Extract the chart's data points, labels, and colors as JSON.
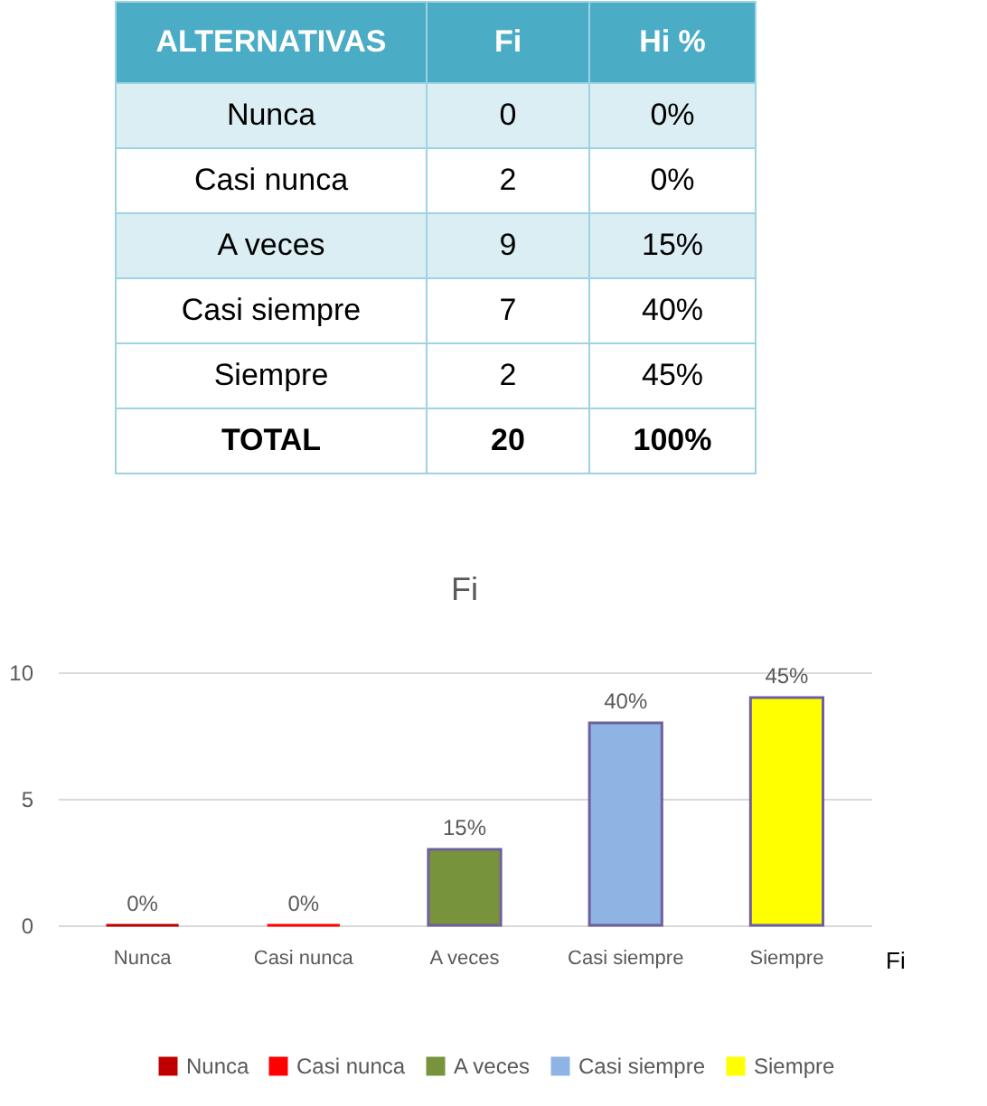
{
  "chart_data": [
    {
      "type": "other",
      "annotations": [
        "ALTERNATIVAS",
        "Fi",
        "Hi %",
        "Nunca",
        "0",
        "0%",
        "Casi nunca",
        "2",
        "0%",
        "A veces",
        "9",
        "15%",
        "Casi siempre",
        "7",
        "40%",
        "Siempre",
        "2",
        "45%",
        "TOTAL",
        "20",
        "100%"
      ]
    },
    {
      "type": "bar",
      "title": "Fi",
      "categories": [
        "Nunca",
        "Casi nunca",
        "A veces",
        "Casi siempre",
        "Siempre"
      ],
      "series": [
        {
          "name": "Nunca",
          "color": "#c00000",
          "values": [
            0,
            null,
            null,
            null,
            null
          ]
        },
        {
          "name": "Casi nunca",
          "color": "#ff0000",
          "values": [
            null,
            0,
            null,
            null,
            null
          ]
        },
        {
          "name": "A veces",
          "color": "#77933c",
          "values": [
            null,
            null,
            3,
            null,
            null
          ]
        },
        {
          "name": "Casi siempre",
          "color": "#8eb4e3",
          "values": [
            null,
            null,
            null,
            8,
            null
          ]
        },
        {
          "name": "Siempre",
          "color": "#ffff00",
          "values": [
            null,
            null,
            null,
            null,
            9
          ]
        }
      ],
      "ylim": [
        0,
        10
      ],
      "yticks": [
        0,
        5,
        10
      ],
      "grid": "y",
      "legend": "bottom",
      "annotations": [
        {
          "text": "0%",
          "x": "Nunca",
          "y": 0
        },
        {
          "text": "0%",
          "x": "Casi nunca",
          "y": 0
        },
        {
          "text": "15%",
          "x": "A veces",
          "y": 3
        },
        {
          "text": "40%",
          "x": "Casi siempre",
          "y": 8
        },
        {
          "text": "45%",
          "x": "Siempre",
          "y": 9
        },
        "Fi"
      ]
    }
  ]
}
